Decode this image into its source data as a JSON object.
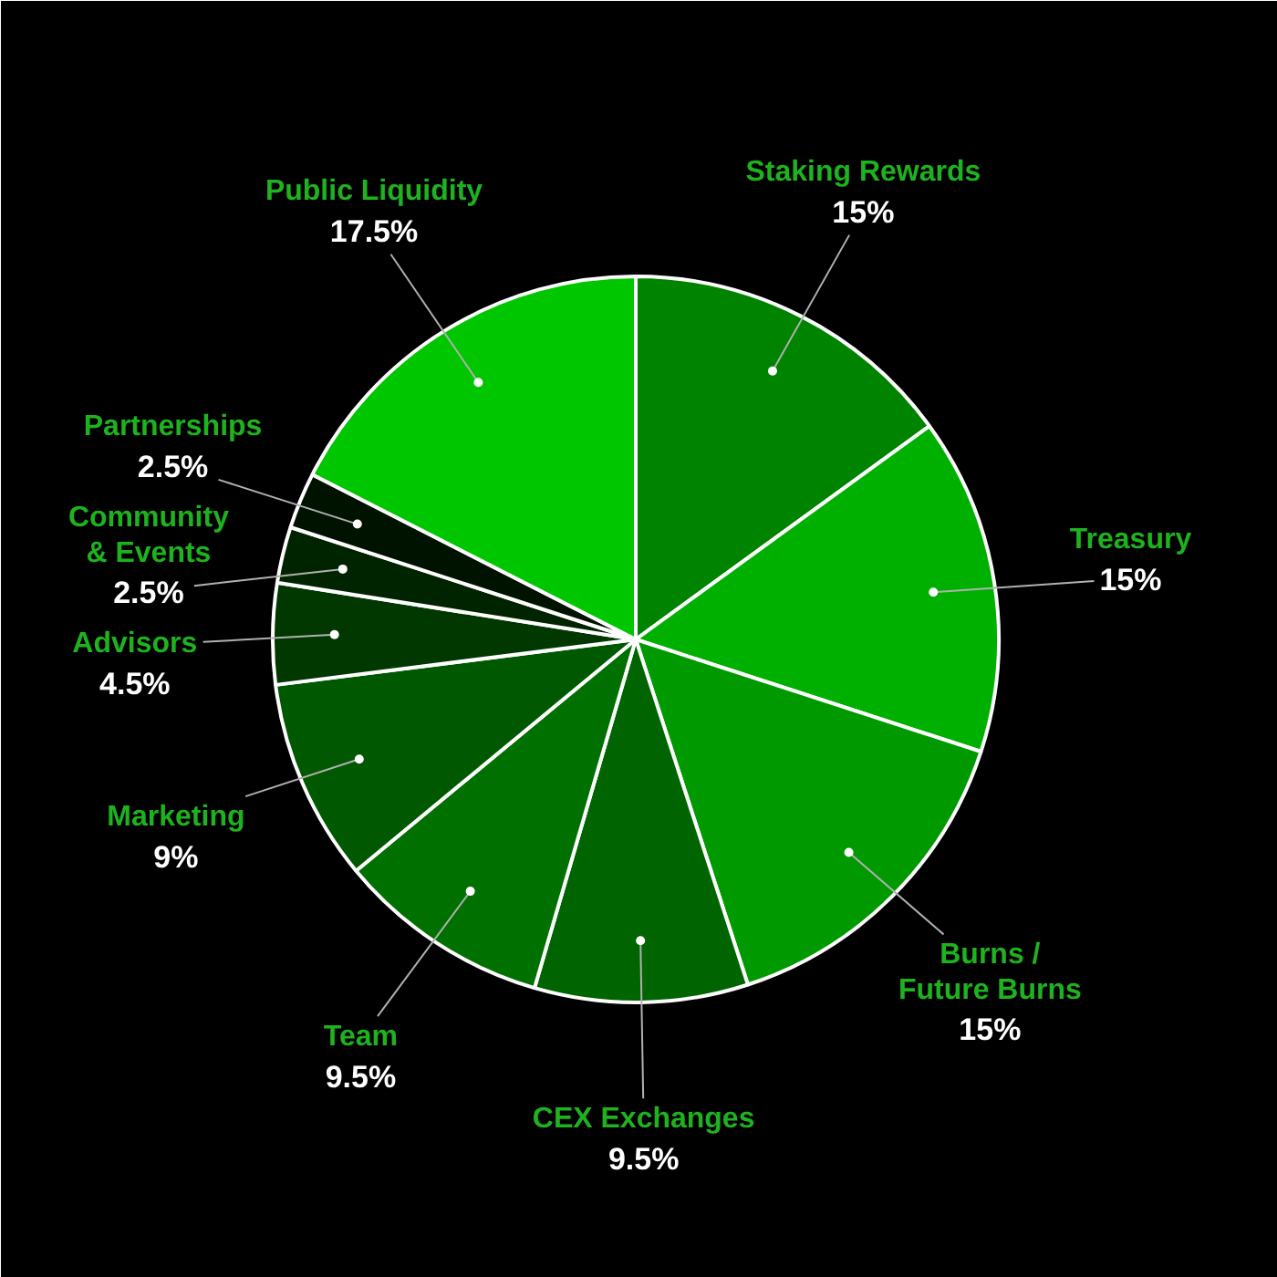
{
  "chart_data": {
    "type": "pie",
    "categories": [
      "Staking Rewards",
      "Treasury",
      "Burns /\nFuture Burns",
      "CEX Exchanges",
      "Team",
      "Marketing",
      "Advisors",
      "Community\n& Events",
      "Partnerships",
      "Public Liquidity"
    ],
    "values": [
      15,
      15,
      15,
      9.5,
      9.5,
      9,
      4.5,
      2.5,
      2.5,
      17.5
    ],
    "value_labels": [
      "15%",
      "15%",
      "15%",
      "9.5%",
      "9.5%",
      "9%",
      "4.5%",
      "2.5%",
      "2.5%",
      "17.5%"
    ],
    "colors": [
      "#008400",
      "#00b000",
      "#009a00",
      "#006400",
      "#007000",
      "#005800",
      "#003800",
      "#002400",
      "#001200",
      "#00c600"
    ],
    "legend": false
  }
}
